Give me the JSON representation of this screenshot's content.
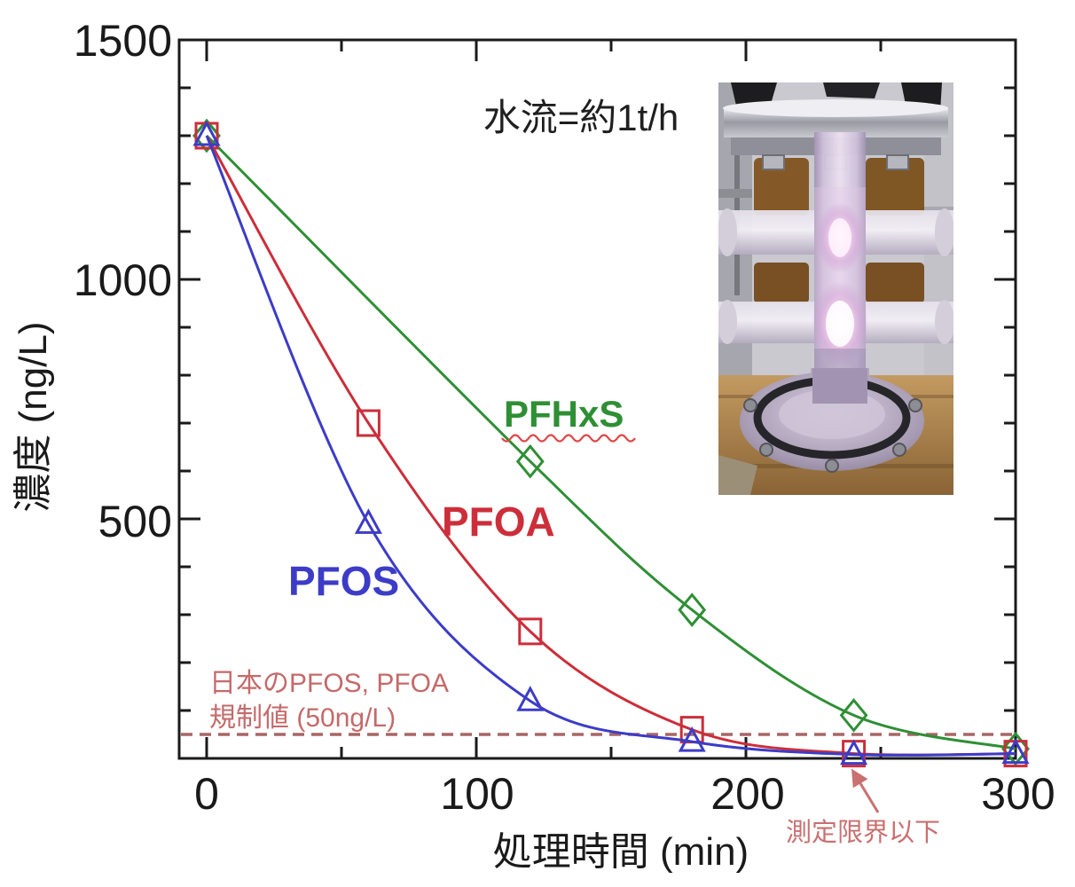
{
  "title_note": "水流=約1t/h",
  "axes": {
    "x_label": "処理時間 (min)",
    "y_label": "濃度 (ng/L)",
    "x_ticks": [
      "0",
      "100",
      "200",
      "300"
    ],
    "y_ticks": [
      "1500",
      "1000",
      "500"
    ]
  },
  "series_labels": {
    "pfhxs": "PFHxS",
    "pfoa": "PFOA",
    "pfos": "PFOS"
  },
  "annotations": {
    "regulation_line1": "日本のPFOS, PFOA",
    "regulation_line2": "規制値 (50ng/L)",
    "detection_limit": "測定限界以下"
  },
  "colors": {
    "pfos": "#3c3cc8",
    "pfoa": "#cc2e3a",
    "pfhxs": "#2f8f35",
    "axis": "#1a1a1a",
    "annotation_red": "#c46a6a",
    "detection_red": "#c97070",
    "regulation_dash": "#a86666",
    "squiggle": "#e04545"
  },
  "chart_data": {
    "type": "line",
    "title": "水流=約1t/h",
    "xlabel": "処理時間 (min)",
    "ylabel": "濃度 (ng/L)",
    "xlim": [
      -10,
      300
    ],
    "ylim": [
      0,
      1500
    ],
    "x_major_ticks": [
      0,
      100,
      200,
      300
    ],
    "x_minor_step": 50,
    "y_major_ticks": [
      500,
      1000,
      1500
    ],
    "y_minor_step": 100,
    "grid": false,
    "legend_position": "inline-labels",
    "regulation_value_ng_L": 50,
    "series": [
      {
        "name": "PFHxS",
        "marker": "diamond",
        "color": "#2f8f35",
        "x": [
          0,
          120,
          180,
          240,
          300
        ],
        "y": [
          1300,
          620,
          310,
          90,
          20
        ]
      },
      {
        "name": "PFOA",
        "marker": "square",
        "color": "#cc2e3a",
        "x": [
          0,
          60,
          120,
          180,
          240,
          300
        ],
        "y": [
          1300,
          700,
          265,
          60,
          10,
          10
        ]
      },
      {
        "name": "PFOS",
        "marker": "triangle",
        "color": "#3c3cc8",
        "x": [
          0,
          60,
          120,
          180,
          240,
          300
        ],
        "y": [
          1300,
          490,
          120,
          35,
          8,
          10
        ]
      }
    ]
  }
}
